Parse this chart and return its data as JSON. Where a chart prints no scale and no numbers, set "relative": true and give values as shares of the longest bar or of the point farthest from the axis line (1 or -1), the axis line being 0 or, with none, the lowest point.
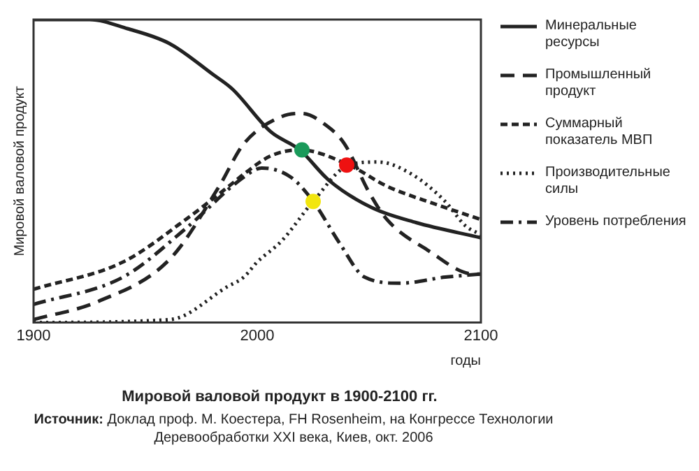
{
  "chart_data": {
    "type": "line",
    "title": "Мировой валовой продукт в 1900-2100 гг.",
    "xlabel": "годы",
    "ylabel": "Мировой валовой продукт",
    "relative": true,
    "xlim": [
      1900,
      2100
    ],
    "xticks": [
      1900,
      2000,
      2100
    ],
    "legend": "right",
    "annotations": [
      "Источник: Доклад проф. М. Коестера, FH Rosenheim, на Конгрессе Технологии Деревообработки XXI века, Киев, окт. 2006"
    ],
    "series": [
      {
        "name": "Минеральные ресурсы",
        "color": "#222222",
        "line_style": "solid",
        "x": [
          1900,
          1925,
          1942,
          1961,
          1980,
          1989,
          2006,
          2019,
          2032,
          2051,
          2071,
          2100
        ],
        "values": [
          1.0,
          1.0,
          0.97,
          0.92,
          0.82,
          0.77,
          0.63,
          0.57,
          0.47,
          0.38,
          0.33,
          0.28
        ]
      },
      {
        "name": "Промышленный продукт",
        "color": "#222222",
        "line_style": "dashed",
        "x": [
          1900,
          1929,
          1961,
          1983,
          1994,
          2011,
          2020,
          2031,
          2039,
          2050,
          2058,
          2076,
          2097,
          2100
        ],
        "values": [
          0.01,
          0.07,
          0.21,
          0.45,
          0.59,
          0.68,
          0.69,
          0.65,
          0.59,
          0.43,
          0.34,
          0.24,
          0.16,
          0.16
        ]
      },
      {
        "name": "Суммарный показатель МВП",
        "color": "#222222",
        "line_style": "short-dashed",
        "x": [
          1900,
          1940,
          1968,
          1989,
          1994,
          2006,
          2019,
          2041,
          2058,
          2080,
          2100
        ],
        "values": [
          0.11,
          0.2,
          0.34,
          0.46,
          0.49,
          0.55,
          0.57,
          0.52,
          0.45,
          0.39,
          0.34
        ]
      },
      {
        "name": "Производительные силы",
        "color": "#222222",
        "line_style": "dotted",
        "x": [
          1900,
          1961,
          1987,
          1994,
          2000,
          2011,
          2025,
          2041,
          2054,
          2069,
          2084,
          2093,
          2100
        ],
        "values": [
          0.0,
          0.01,
          0.12,
          0.15,
          0.2,
          0.27,
          0.4,
          0.52,
          0.53,
          0.49,
          0.4,
          0.32,
          0.29
        ]
      },
      {
        "name": "Уровень потребления",
        "color": "#222222",
        "line_style": "dashdot",
        "x": [
          1900,
          1940,
          1968,
          1994,
          2002,
          2015,
          2025,
          2037,
          2048,
          2064,
          2084,
          2100
        ],
        "values": [
          0.06,
          0.15,
          0.31,
          0.48,
          0.51,
          0.48,
          0.4,
          0.26,
          0.15,
          0.13,
          0.15,
          0.16
        ]
      },
      {
        "type": "scatter",
        "marker": "circle",
        "x": [
          2020,
          2040,
          2025
        ],
        "values": [
          0.57,
          0.52,
          0.4
        ],
        "colors": [
          "#1a9a5a",
          "#ee1111",
          "#f2e60f"
        ]
      }
    ]
  }
}
